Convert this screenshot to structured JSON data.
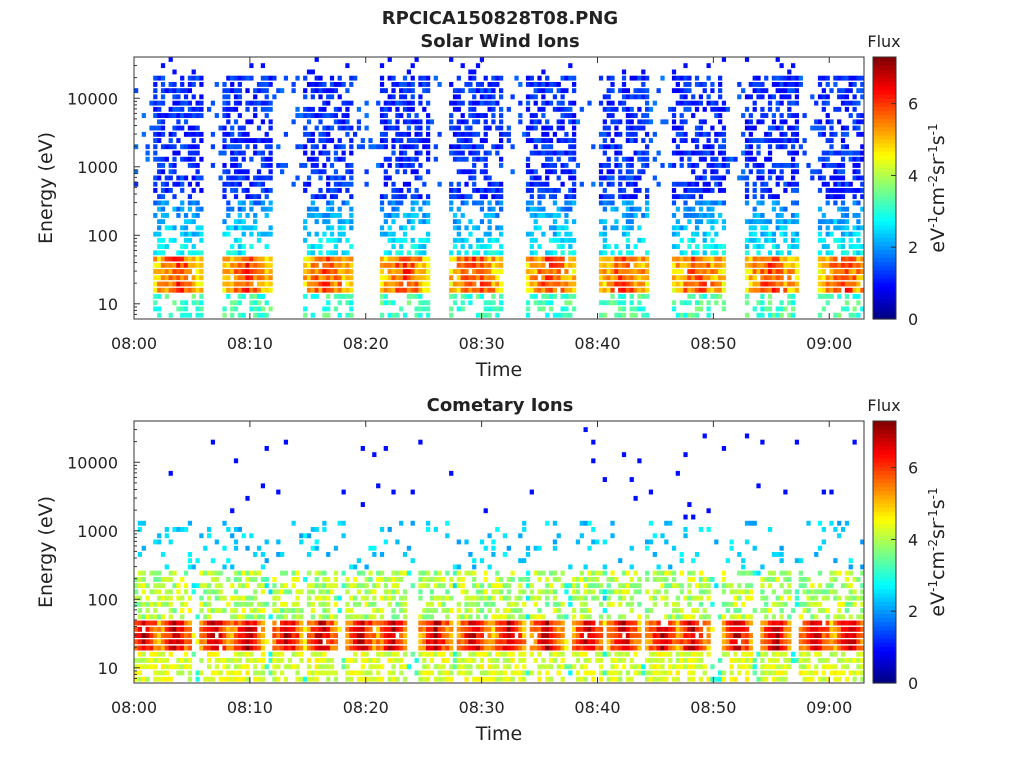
{
  "figure_title": "RPCICA150828T08.PNG",
  "chart_data": [
    {
      "type": "heatmap",
      "title": "Solar Wind Ions",
      "xlabel": "Time",
      "ylabel": "Energy (eV)",
      "xlim": [
        "08:00",
        "09:03"
      ],
      "xticks": [
        "08:00",
        "08:10",
        "08:20",
        "08:30",
        "08:40",
        "08:50",
        "09:00"
      ],
      "y_scale": "log",
      "ylim": [
        6,
        40000
      ],
      "yticks": [
        "10",
        "100",
        "1000",
        "10000"
      ],
      "colorbar": {
        "title": "Flux",
        "label": "eV-1cm-2sr-1s-1",
        "range": [
          0,
          7.3
        ],
        "ticks": [
          "0",
          "2",
          "4",
          "6"
        ],
        "colormap": "jet"
      },
      "pattern": {
        "description_free": true,
        "burst_centers_min": [
          3.8,
          9.8,
          16.7,
          23.4,
          29.5,
          35.9,
          42.3,
          48.7,
          55.0,
          61.3
        ],
        "burst_halfwidth_min": 2.2,
        "core_energy_eV": [
          15,
          45
        ],
        "core_flux": 6.0,
        "high_energy_flux": 1.2,
        "low_energy_flux": 3.2,
        "background_flux": 1.5
      }
    },
    {
      "type": "heatmap",
      "title": "Cometary Ions",
      "xlabel": "Time",
      "ylabel": "Energy (eV)",
      "xlim": [
        "08:00",
        "09:03"
      ],
      "xticks": [
        "08:00",
        "08:10",
        "08:20",
        "08:30",
        "08:40",
        "08:50",
        "09:00"
      ],
      "y_scale": "log",
      "ylim": [
        6,
        40000
      ],
      "yticks": [
        "10",
        "100",
        "1000",
        "10000"
      ],
      "colorbar": {
        "title": "Flux",
        "label": "eV-1cm-2sr-1s-1",
        "range": [
          0,
          7.3
        ],
        "ticks": [
          "0",
          "2",
          "4",
          "6"
        ],
        "colormap": "jet"
      },
      "pattern": {
        "burst_centers_min": [
          0.8,
          3.6,
          7.0,
          9.8,
          13.2,
          16.2,
          19.6,
          22.3,
          26.0,
          29.3,
          32.4,
          35.6,
          39.2,
          42.3,
          45.6,
          48.2,
          52.0,
          55.4,
          58.8,
          61.8
        ],
        "burst_halfwidth_min": 1.4,
        "core_energy_eV": [
          16,
          45
        ],
        "core_flux": 6.9,
        "mid_energy_flux": 3.0,
        "low_energy_flux": 3.1
      }
    }
  ]
}
